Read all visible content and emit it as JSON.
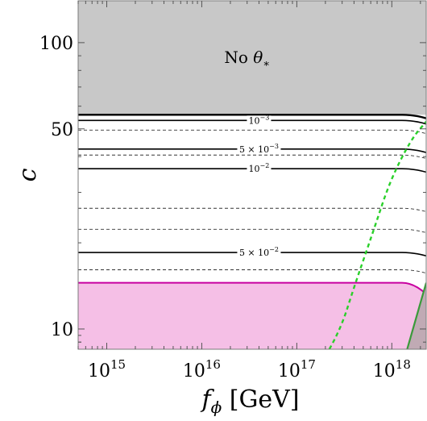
{
  "chart_data": {
    "type": "line",
    "xlabel_main": "f",
    "xlabel_sub": "ϕ",
    "xlabel_unit": " [GeV]",
    "ylabel": "c",
    "x_scale": "log",
    "y_scale": "log",
    "xlim": [
      500000000000000.0,
      2.3e+18
    ],
    "ylim": [
      8.5,
      140
    ],
    "grid": false,
    "legend": "none",
    "x_ticks": [
      {
        "value": 1000000000000000.0,
        "base": "10",
        "exp": "15"
      },
      {
        "value": 1e+16,
        "base": "10",
        "exp": "16"
      },
      {
        "value": 1e+17,
        "base": "10",
        "exp": "17"
      },
      {
        "value": 1e+18,
        "base": "10",
        "exp": "18"
      }
    ],
    "y_ticks": [
      {
        "value": 10,
        "label": "10"
      },
      {
        "value": 50,
        "label": "50"
      },
      {
        "value": 100,
        "label": "100"
      }
    ],
    "regions": [
      {
        "id": "no-theta",
        "label_main": "No ",
        "label_sym": "θ",
        "label_sub": "∗",
        "y_from": 56,
        "y_to": 140,
        "x_from": 500000000000000.0,
        "x_to": 2.3e+18,
        "color": "#c8c8c8"
      },
      {
        "id": "pink",
        "boundary_y": 14.5,
        "color": "#f5bfe6",
        "edge_color": "#c800a0"
      },
      {
        "id": "corner",
        "color": "#c0aab4",
        "edge_color": "#3a9a3a"
      }
    ],
    "solid_contours": [
      {
        "y": 56,
        "label": ""
      },
      {
        "y": 53.5,
        "label": "10",
        "label_exp": "−3"
      },
      {
        "y": 42.5,
        "label": "5 × 10",
        "label_exp": "−3"
      },
      {
        "y": 36.3,
        "label": "10",
        "label_exp": "−2"
      },
      {
        "y": 18.5,
        "label": "5 × 10",
        "label_exp": "−2"
      }
    ],
    "dashed_contours": [
      {
        "y": 49.5
      },
      {
        "y": 40.5
      },
      {
        "y": 26.4
      },
      {
        "y": 22.3
      },
      {
        "y": 16.1
      }
    ],
    "green_dashed_curve": {
      "color": "#2ad02a",
      "points": [
        [
          2.2e+17,
          8.5
        ],
        [
          2.9e+17,
          10
        ],
        [
          4e+17,
          14.0
        ],
        [
          6.4e+17,
          22.0
        ],
        [
          9.6e+17,
          33.0
        ],
        [
          1.6e+18,
          46
        ],
        [
          2.3e+18,
          53
        ]
      ]
    },
    "green_solid_curve": {
      "color": "#3a9a3a",
      "points": [
        [
          1.45e+18,
          8.5
        ],
        [
          2.3e+18,
          14.5
        ]
      ]
    }
  }
}
